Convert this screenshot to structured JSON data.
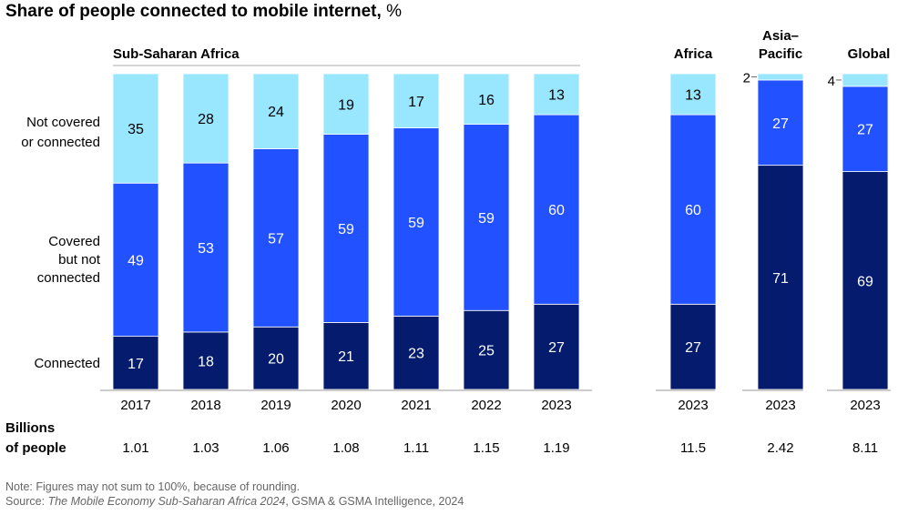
{
  "title": "Share of people connected to mobile internet,",
  "title_unit": "%",
  "chart_data": {
    "type": "bar",
    "stacked": true,
    "title": "Share of people connected to mobile internet, %",
    "group_label": "Sub-Saharan Africa",
    "series_labels": [
      "Connected",
      "Covered but not connected",
      "Not covered or connected"
    ],
    "series_label_lines": [
      [
        "Connected"
      ],
      [
        "Covered",
        "but not",
        "connected"
      ],
      [
        "Not covered",
        "or connected"
      ]
    ],
    "colors": [
      "#051c6e",
      "#2251ff",
      "#99e6ff"
    ],
    "bars": [
      {
        "group": "ssa",
        "x": "2017",
        "values": [
          17,
          49,
          35
        ],
        "population": "1.01"
      },
      {
        "group": "ssa",
        "x": "2018",
        "values": [
          18,
          53,
          28
        ],
        "population": "1.03"
      },
      {
        "group": "ssa",
        "x": "2019",
        "values": [
          20,
          57,
          24
        ],
        "population": "1.06"
      },
      {
        "group": "ssa",
        "x": "2020",
        "values": [
          21,
          59,
          19
        ],
        "population": "1.08"
      },
      {
        "group": "ssa",
        "x": "2021",
        "values": [
          23,
          59,
          17
        ],
        "population": "1.11"
      },
      {
        "group": "ssa",
        "x": "2022",
        "values": [
          25,
          59,
          16
        ],
        "population": "1.15"
      },
      {
        "group": "ssa",
        "x": "2023",
        "values": [
          27,
          60,
          13
        ],
        "population": "1.19"
      },
      {
        "group": "Africa",
        "header": [
          "Africa"
        ],
        "x": "2023",
        "values": [
          27,
          60,
          13
        ],
        "population": "11.5"
      },
      {
        "group": "Asia–Pacific",
        "header": [
          "Asia–",
          "Pacific"
        ],
        "x": "2023",
        "values": [
          71,
          27,
          2
        ],
        "population": "2.42"
      },
      {
        "group": "Global",
        "header": [
          "Global"
        ],
        "x": "2023",
        "values": [
          69,
          27,
          4
        ],
        "population": "8.11"
      }
    ],
    "population_label": [
      "Billions",
      "of people"
    ]
  },
  "note": "Note: Figures may not sum to 100%, because of rounding.",
  "source_prefix": "Source: ",
  "source_title": "The Mobile Economy Sub-Saharan Africa 2024",
  "source_suffix": ", GSMA & GSMA Intelligence, 2024"
}
